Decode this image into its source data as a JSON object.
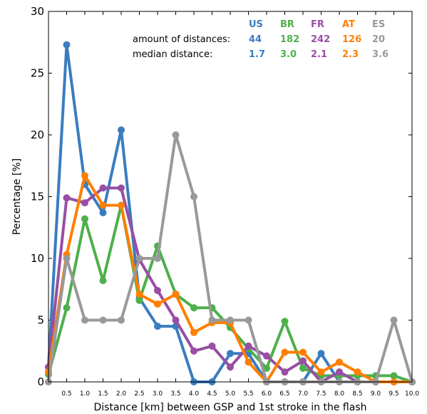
{
  "chart_data": {
    "type": "line",
    "xlabel": "Distance [km] between GSP and 1st stroke in the flash",
    "ylabel": "Percentage [%]",
    "ylim": [
      0,
      30
    ],
    "xlim": [
      0,
      10
    ],
    "yticks": [
      "0",
      "5",
      "10",
      "15",
      "20",
      "25",
      "30"
    ],
    "x": [
      0,
      0.5,
      1.0,
      1.5,
      2.0,
      2.5,
      3.0,
      3.5,
      4.0,
      4.5,
      5.0,
      5.5,
      6.0,
      6.5,
      7.0,
      7.5,
      8.0,
      8.5,
      9.0,
      9.5,
      10.0
    ],
    "xtick_labels": [
      "0.5",
      "1.0",
      "1.5",
      "2.0",
      "2.5",
      "3.0",
      "3.5",
      "4.0",
      "4.5",
      "5.0",
      "5.5",
      "6.0",
      "6.5",
      "7.0",
      "7.5",
      "8.0",
      "8.5",
      "9.0",
      "9.5",
      "10.0"
    ],
    "xtick_values": [
      0.5,
      1.0,
      1.5,
      2.0,
      2.5,
      3.0,
      3.5,
      4.0,
      4.5,
      5.0,
      5.5,
      6.0,
      6.5,
      7.0,
      7.5,
      8.0,
      8.5,
      9.0,
      9.5,
      10.0
    ],
    "grid": false,
    "annotation": {
      "row1_label": "amount of distances:",
      "row2_label": "median distance:"
    },
    "series": [
      {
        "name": "US",
        "color": "#3a7dbf",
        "amount": "44",
        "median": "1.7",
        "values": [
          1.2,
          27.3,
          16.0,
          13.7,
          20.4,
          6.8,
          4.5,
          4.5,
          0,
          0,
          2.3,
          2.3,
          0,
          0,
          0,
          2.3,
          0,
          0,
          0,
          0,
          0
        ]
      },
      {
        "name": "BR",
        "color": "#4db04a",
        "amount": "182",
        "median": "3.0",
        "values": [
          0.6,
          6.0,
          13.2,
          8.2,
          14.3,
          6.6,
          11.0,
          7.1,
          6.0,
          6.0,
          4.4,
          2.7,
          1.1,
          4.9,
          1.1,
          0.5,
          0.5,
          0.5,
          0.5,
          0.5,
          0
        ]
      },
      {
        "name": "FR",
        "color": "#984ea3",
        "amount": "242",
        "median": "2.1",
        "values": [
          1.2,
          14.9,
          14.5,
          15.7,
          15.7,
          9.9,
          7.4,
          5.0,
          2.5,
          2.9,
          1.2,
          2.9,
          2.1,
          0.8,
          1.7,
          0,
          0.8,
          0,
          0,
          0,
          0
        ]
      },
      {
        "name": "AT",
        "color": "#ff7f00",
        "amount": "126",
        "median": "2.3",
        "values": [
          0.8,
          10.3,
          16.7,
          14.3,
          14.3,
          7.1,
          6.3,
          7.1,
          4.0,
          4.8,
          4.8,
          1.6,
          0,
          2.4,
          2.4,
          0.8,
          1.6,
          0.8,
          0,
          0,
          0
        ]
      },
      {
        "name": "ES",
        "color": "#999999",
        "amount": "20",
        "median": "3.6",
        "values": [
          0,
          10.0,
          5.0,
          5.0,
          5.0,
          10.0,
          10.0,
          20.0,
          15.0,
          5.0,
          5.0,
          5.0,
          0,
          0,
          0,
          0,
          0,
          0,
          0,
          5.0,
          0
        ]
      }
    ]
  }
}
